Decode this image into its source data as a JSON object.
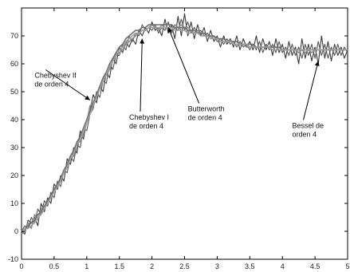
{
  "chart_data": {
    "type": "line",
    "title": "",
    "xlabel": "",
    "ylabel": "",
    "xlim": [
      0,
      5
    ],
    "ylim": [
      -10,
      80
    ],
    "xticks": [
      0,
      0.5,
      1,
      1.5,
      2,
      2.5,
      3,
      3.5,
      4,
      4.5,
      5
    ],
    "xtick_labels": [
      "0",
      "0.5",
      "1",
      "1.5",
      "2",
      "2.5",
      "3",
      "3.5",
      "4",
      "4.5",
      "5"
    ],
    "yticks": [
      -10,
      0,
      10,
      20,
      30,
      40,
      50,
      60,
      70
    ],
    "ytick_labels": [
      "-10",
      "0",
      "10",
      "20",
      "30",
      "40",
      "50",
      "60",
      "70"
    ],
    "grid": false,
    "legend": "none",
    "colors": {
      "signal": "#3a3a3a",
      "filtered": "#8e8e8e",
      "axis": "#000000"
    },
    "x": [
      0,
      0.05,
      0.1,
      0.15,
      0.2,
      0.25,
      0.3,
      0.35,
      0.4,
      0.45,
      0.5,
      0.55,
      0.6,
      0.65,
      0.7,
      0.75,
      0.8,
      0.85,
      0.9,
      0.95,
      1.0,
      1.05,
      1.1,
      1.15,
      1.2,
      1.25,
      1.3,
      1.35,
      1.4,
      1.45,
      1.5,
      1.55,
      1.6,
      1.65,
      1.7,
      1.75,
      1.8,
      1.85,
      1.9,
      1.95,
      2.0,
      2.05,
      2.1,
      2.15,
      2.2,
      2.25,
      2.3,
      2.35,
      2.4,
      2.45,
      2.5,
      2.55,
      2.6,
      2.65,
      2.7,
      2.75,
      2.8,
      2.85,
      2.9,
      2.95,
      3.0,
      3.05,
      3.1,
      3.15,
      3.2,
      3.25,
      3.3,
      3.35,
      3.4,
      3.45,
      3.5,
      3.55,
      3.6,
      3.65,
      3.7,
      3.75,
      3.8,
      3.85,
      3.9,
      3.95,
      4.0,
      4.05,
      4.1,
      4.15,
      4.2,
      4.25,
      4.3,
      4.35,
      4.4,
      4.45,
      4.5,
      4.55,
      4.6,
      4.65,
      4.7,
      4.75,
      4.8,
      4.85,
      4.9,
      4.95,
      5.0
    ],
    "series": [
      {
        "values": [
          0,
          -1,
          4,
          3,
          5,
          2,
          10,
          7,
          12,
          10,
          17,
          15,
          20,
          18,
          26,
          24,
          30,
          28,
          36,
          33,
          40,
          43,
          49,
          46,
          52,
          50,
          57,
          55,
          62,
          60,
          66,
          64,
          68,
          66,
          69,
          67,
          72,
          70,
          73,
          71,
          75,
          72,
          73,
          70,
          76,
          71,
          74,
          69,
          77,
          70,
          78,
          70,
          75,
          69,
          74,
          70,
          73,
          68,
          72,
          68,
          70,
          66,
          70,
          67,
          69,
          66,
          70,
          65,
          69,
          66,
          68,
          65,
          70,
          64,
          69,
          65,
          68,
          63,
          69,
          64,
          67,
          62,
          68,
          63,
          66,
          60,
          69,
          62,
          67,
          61,
          66,
          60,
          70,
          62,
          68,
          61,
          67,
          63,
          66,
          62,
          65
        ]
      },
      {
        "values": [
          0,
          2,
          1,
          5,
          3,
          8,
          6,
          11,
          9,
          14,
          12,
          18,
          16,
          22,
          21,
          27,
          25,
          31,
          30,
          37,
          36,
          42,
          44,
          50,
          48,
          54,
          53,
          60,
          58,
          63,
          63,
          67,
          65,
          70,
          68,
          71,
          70,
          74,
          72,
          73,
          72,
          74,
          71,
          73,
          72,
          75,
          71,
          73,
          72,
          76,
          72,
          75,
          71,
          73,
          71,
          72,
          70,
          71,
          69,
          70,
          68,
          69,
          67,
          69,
          67,
          68,
          66,
          68,
          66,
          67,
          65,
          67,
          65,
          68,
          64,
          67,
          65,
          67,
          64,
          68,
          64,
          66,
          63,
          67,
          63,
          66,
          62,
          67,
          63,
          67,
          62,
          68,
          63,
          67,
          62,
          66,
          63,
          67,
          63,
          66,
          64
        ]
      },
      {
        "values": [
          -1,
          0,
          3,
          1,
          6,
          4,
          8,
          9,
          10,
          13,
          15,
          17,
          19,
          21,
          23,
          26,
          27,
          32,
          32,
          35,
          39,
          45,
          46,
          49,
          51,
          55,
          56,
          58,
          61,
          64,
          64,
          65,
          67,
          68,
          69,
          70,
          71,
          72,
          72,
          73,
          74,
          73,
          72,
          74,
          73,
          73,
          72,
          74,
          73,
          74,
          73,
          73,
          72,
          71,
          72,
          71,
          71,
          70,
          70,
          69,
          69,
          68,
          68,
          68,
          68,
          67,
          67,
          67,
          67,
          66,
          66,
          66,
          66,
          66,
          66,
          66,
          66,
          66,
          66,
          65,
          65,
          65,
          65,
          65,
          65,
          64,
          65,
          64,
          65,
          64,
          65,
          65,
          65,
          65,
          65,
          65,
          65,
          65,
          65,
          65,
          65
        ]
      },
      {
        "values": [
          0,
          1,
          2,
          3,
          4,
          6,
          7,
          9,
          11,
          13,
          15,
          17,
          19,
          22,
          24,
          27,
          29,
          32,
          34,
          37,
          40,
          43,
          46,
          49,
          52,
          55,
          57,
          60,
          62,
          64,
          66,
          67,
          69,
          70,
          71,
          72,
          72,
          73,
          73,
          74,
          74,
          74,
          74,
          74,
          74,
          74,
          74,
          73,
          73,
          73,
          73,
          72,
          72,
          72,
          71,
          71,
          71,
          70,
          70,
          70,
          69,
          69,
          69,
          68,
          68,
          68,
          68,
          67,
          67,
          67,
          67,
          67,
          66,
          66,
          66,
          66,
          66,
          66,
          66,
          66,
          65,
          65,
          65,
          65,
          65,
          65,
          65,
          65,
          65,
          65,
          65,
          65,
          65,
          65,
          65,
          65,
          65,
          65,
          65,
          65,
          65
        ]
      },
      {
        "values": [
          0,
          1,
          1,
          2,
          3,
          5,
          6,
          8,
          10,
          12,
          14,
          16,
          18,
          21,
          23,
          26,
          28,
          31,
          33,
          36,
          39,
          42,
          45,
          48,
          51,
          54,
          56,
          59,
          61,
          63,
          65,
          66,
          68,
          69,
          70,
          71,
          71,
          72,
          72,
          73,
          73,
          73,
          73,
          73,
          73,
          73,
          73,
          72,
          72,
          72,
          72,
          71,
          71,
          71,
          71,
          70,
          70,
          70,
          69,
          69,
          69,
          68,
          68,
          68,
          68,
          67,
          67,
          67,
          67,
          67,
          66,
          66,
          66,
          66,
          66,
          66,
          66,
          65,
          65,
          65,
          65,
          65,
          65,
          65,
          65,
          65,
          65,
          65,
          65,
          65,
          65,
          65,
          65,
          65,
          65,
          65,
          65,
          65,
          65,
          65,
          65
        ]
      }
    ],
    "annotations": [
      {
        "lines": [
          "Chebyshev II",
          "de orden 4"
        ],
        "x": 0.2,
        "y": 55,
        "arrow_to": [
          1.05,
          47
        ]
      },
      {
        "lines": [
          "Chebyshev I",
          "de orden 4"
        ],
        "x": 1.65,
        "y": 40,
        "arrow_to": [
          1.85,
          69
        ]
      },
      {
        "lines": [
          "Butterworth",
          "de orden 4"
        ],
        "x": 2.55,
        "y": 43,
        "arrow_to": [
          2.25,
          73
        ]
      },
      {
        "lines": [
          "Bessel de",
          "orden 4"
        ],
        "x": 4.15,
        "y": 37,
        "arrow_to": [
          4.55,
          61
        ]
      }
    ]
  }
}
